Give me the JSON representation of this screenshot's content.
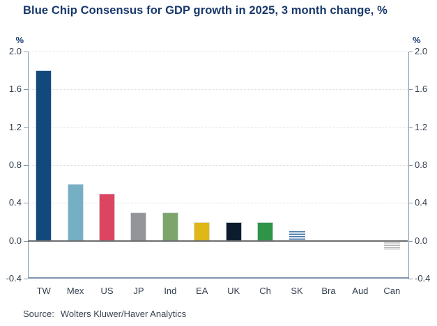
{
  "title": "Blue Chip Consensus for GDP growth in 2025, 3 month change, %",
  "axis": {
    "unit": "%",
    "ticks": [
      {
        "value": 2.0,
        "label": "2.0"
      },
      {
        "value": 1.6,
        "label": "1.6"
      },
      {
        "value": 1.2,
        "label": "1.2"
      },
      {
        "value": 0.8,
        "label": "0.8"
      },
      {
        "value": 0.4,
        "label": "0.4"
      },
      {
        "value": 0.0,
        "label": "0.0"
      },
      {
        "value": -0.4,
        "label": "-0.4"
      }
    ],
    "gridline_values": [
      2.0,
      1.6,
      1.2,
      0.8,
      0.4
    ],
    "ylim": [
      -0.4,
      2.0
    ]
  },
  "chart_data": {
    "type": "bar",
    "title": "Blue Chip Consensus for GDP growth in 2025, 3 month change, %",
    "categories": [
      "TW",
      "Mex",
      "US",
      "JP",
      "Ind",
      "EA",
      "UK",
      "Ch",
      "SK",
      "Bra",
      "Aud",
      "Can"
    ],
    "values": [
      1.8,
      0.6,
      0.5,
      0.3,
      0.3,
      0.2,
      0.2,
      0.2,
      0.1,
      0.0,
      0.0,
      -0.1
    ],
    "bar_colors": [
      "#11497d",
      "#76afc4",
      "#dc4560",
      "#949598",
      "#7ba56b",
      "#dfb717",
      "#0d1b2e",
      "#2e9447",
      "#3f74a6",
      "#7f96ac",
      "#7f96ac",
      "#b2b2b2"
    ],
    "bar_styles": [
      "solid",
      "solid",
      "solid",
      "solid",
      "solid",
      "solid",
      "solid",
      "solid",
      "hatch",
      "none",
      "none",
      "hatch"
    ],
    "xlabel": "",
    "ylabel": "%",
    "ylim": [
      -0.4,
      2.0
    ],
    "grid": "horizontal-dotted",
    "legend": "none"
  },
  "source": {
    "label": "Source:",
    "text": "Wolters Kluwer/Haver Analytics"
  },
  "colors": {
    "title_text": "#18386b",
    "axis_line": "#7f96ac",
    "zero_line": "#6c6e70",
    "gridline": "#d9dcd8",
    "tick_text": "#333f4d",
    "source_text": "#3b4450"
  }
}
